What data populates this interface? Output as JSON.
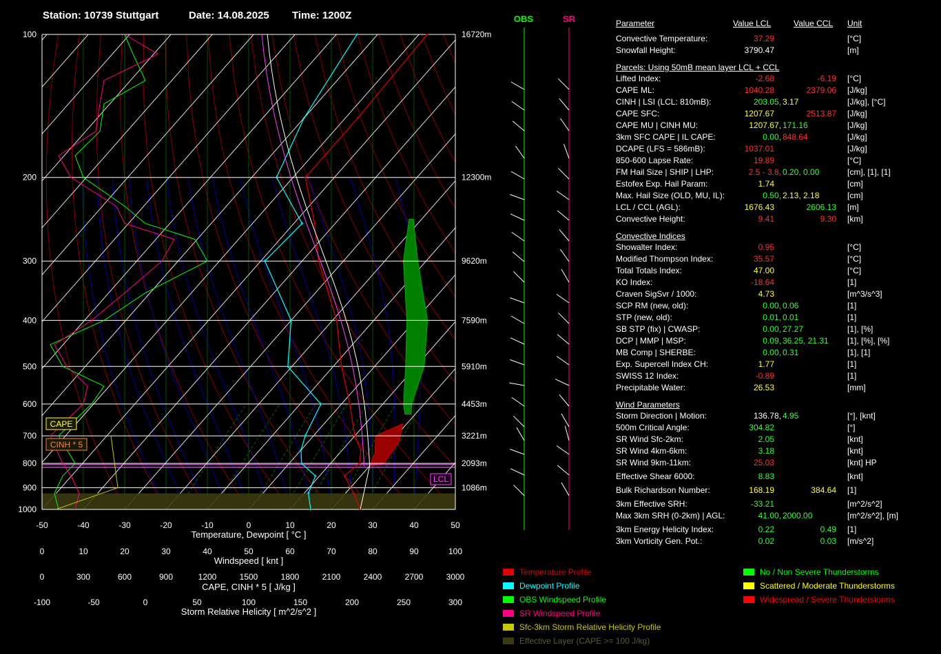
{
  "header": {
    "station": "Station: 10739 Stuttgart",
    "date": "Date: 14.08.2025",
    "time": "Time: 1200Z"
  },
  "skewt": {
    "pressure_ticks": [
      "100",
      "200",
      "300",
      "400",
      "500",
      "600",
      "700",
      "800",
      "900",
      "1000"
    ],
    "height_labels": [
      "16720m",
      "12300m",
      "9620m",
      "7590m",
      "5910m",
      "4453m",
      "3221m",
      "2093m",
      "1086m"
    ],
    "temp_ticks": [
      "-50",
      "-40",
      "-30",
      "-20",
      "-10",
      "0",
      "10",
      "20",
      "30",
      "40",
      "50"
    ],
    "temp_axis_label": "Temperature, Dewpoint [ °C ]",
    "wind_ticks": [
      "0",
      "10",
      "20",
      "30",
      "40",
      "50",
      "60",
      "70",
      "80",
      "90",
      "100"
    ],
    "wind_axis_label": "Windspeed [ knt ]",
    "cape_ticks": [
      "0",
      "300",
      "600",
      "900",
      "1200",
      "1500",
      "1800",
      "2100",
      "2400",
      "2700",
      "3000"
    ],
    "cape_axis_label": "CAPE, CINH * 5 [ J/kg ]",
    "srh_ticks": [
      "-100",
      "-50",
      "0",
      "50",
      "100",
      "150",
      "200",
      "250",
      "300"
    ],
    "srh_axis_label": "Storm Relative Helicity [ m^2/s^2 ]",
    "cape_box": "CAPE",
    "cinh_box": "CINH * 5",
    "lcl_box": "LCL"
  },
  "wind_columns": {
    "obs": "OBS",
    "sr": "SR"
  },
  "chart_data": {
    "type": "line",
    "title": "Station: 10739 Stuttgart Date: 14.08.2025 Time: 1200Z",
    "xlabel": "Temperature, Dewpoint [ °C ]",
    "ylabel": "",
    "xlim": [
      -50,
      50
    ],
    "ylim": [
      1000,
      100
    ],
    "y_scale": "log",
    "series": [
      {
        "name": "Temperature Profile",
        "color": "#e00000",
        "points": [
          [
            1000,
            27
          ],
          [
            925,
            22
          ],
          [
            850,
            16
          ],
          [
            800,
            17
          ],
          [
            750,
            14.5
          ],
          [
            700,
            10
          ],
          [
            600,
            2
          ],
          [
            500,
            -8
          ],
          [
            400,
            -19
          ],
          [
            300,
            -36
          ],
          [
            250,
            -45
          ],
          [
            200,
            -57
          ],
          [
            150,
            -57
          ],
          [
            100,
            -58
          ]
        ]
      },
      {
        "name": "Dewpoint Profile",
        "color": "#00ffff",
        "points": [
          [
            1000,
            15
          ],
          [
            925,
            11
          ],
          [
            850,
            9
          ],
          [
            800,
            3
          ],
          [
            750,
            0
          ],
          [
            700,
            -2
          ],
          [
            600,
            -5
          ],
          [
            500,
            -21
          ],
          [
            400,
            -30
          ],
          [
            300,
            -49
          ],
          [
            250,
            -48
          ],
          [
            200,
            -64
          ],
          [
            150,
            -70
          ],
          [
            100,
            -75
          ]
        ]
      }
    ]
  },
  "table": {
    "headers": {
      "param": "Parameter",
      "lcl": "Value LCL",
      "ccl": "Value CCL",
      "unit": "Unit"
    },
    "rows": [
      {
        "l": "Convective Temperature:",
        "v1": "37.29",
        "c1": "#ff3030",
        "v2": "",
        "c2": "",
        "u": "[°C]"
      },
      {
        "l": "Snowfall Height:",
        "v1": "3790.47",
        "c1": "#ffffff",
        "v2": "",
        "c2": "",
        "u": "[m]"
      },
      {
        "sec": "Parcels: Using 50mB mean layer LCL + CCL"
      },
      {
        "l": "Lifted Index:",
        "v1": "-2.68",
        "c1": "#ff3030",
        "v2": "-6.19",
        "c2": "#ff3030",
        "u": "[°C]"
      },
      {
        "l": "CAPE ML:",
        "v1": "1040.28",
        "c1": "#ff3030",
        "v2": "2379.06",
        "c2": "#ff3030",
        "u": "[J/kg]"
      },
      {
        "l": "CINH | LSI (LCL: 810mB):",
        "v1": "203.05,",
        "c1": "#33ff33",
        "v2": "3.17",
        "c2": "#ffff33",
        "u": "[J/kg], [°C]",
        "v2left": true
      },
      {
        "l": "CAPE SFC:",
        "v1": "1207.67",
        "c1": "#ffff33",
        "v2": "2513.87",
        "c2": "#ff3030",
        "u": "[J/kg]"
      },
      {
        "l": "CAPE MU | CINH MU:",
        "v1": "1207.67,",
        "c1": "#ffff33",
        "v2": "171.16",
        "c2": "#33ff33",
        "u": "[J/kg]",
        "v2left": true
      },
      {
        "l": "3km SFC CAPE | IL CAPE:",
        "v1": "0.00,",
        "c1": "#33ff33",
        "v2": "848.64",
        "c2": "#ff3030",
        "u": "[J/kg]",
        "v2left": true
      },
      {
        "l": "DCAPE (LFS = 586mB):",
        "v1": "1037.01",
        "c1": "#ff3030",
        "v2": "",
        "c2": "",
        "u": "[J/kg]"
      },
      {
        "l": "850-600 Lapse Rate:",
        "v1": "19.89",
        "c1": "#ff3030",
        "v2": "",
        "c2": "",
        "u": "[°C]"
      },
      {
        "l": "FM Hail Size | SHIP | LHP:",
        "v1": "2.5 - 3.8,",
        "c1": "#ff3030",
        "v2": "0.20,  0.00",
        "c2": "#33ff33",
        "u": "[cm], [1], [1]",
        "v2left": true
      },
      {
        "l": "Estofex Exp. Hail Param:",
        "v1": "1.74",
        "c1": "#ffff33",
        "v2": "",
        "c2": "",
        "u": "[cm]"
      },
      {
        "l": "Max. Hail Size (OLD, MU, IL):",
        "v1": "0.50,",
        "c1": "#33ff33",
        "v2": "2.13,  2.18",
        "c2": "#ffff33",
        "u": "[cm]",
        "v2left": true
      },
      {
        "l": "LCL / CCL (AGL):",
        "v1": "1676.43",
        "c1": "#ffff33",
        "v2": "2606.13",
        "c2": "#33ff33",
        "u": "[m]"
      },
      {
        "l": "Convective Height:",
        "v1": "9.41",
        "c1": "#ff3030",
        "v2": "9.30",
        "c2": "#ff3030",
        "u": "[km]"
      },
      {
        "sec": "Convective Indices"
      },
      {
        "l": "Showalter Index:",
        "v1": "0.95",
        "c1": "#ff3030",
        "v2": "",
        "c2": "",
        "u": "[°C]"
      },
      {
        "l": "Modified Thompson Index:",
        "v1": "35.57",
        "c1": "#ff3030",
        "v2": "",
        "c2": "",
        "u": "[°C]"
      },
      {
        "l": "Total Totals Index:",
        "v1": "47.00",
        "c1": "#ffff33",
        "v2": "",
        "c2": "",
        "u": "[°C]"
      },
      {
        "l": "KO Index:",
        "v1": "-18.64",
        "c1": "#ff3030",
        "v2": "",
        "c2": "",
        "u": "[1]"
      },
      {
        "l": "Craven SigSvr / 1000:",
        "v1": "4.73",
        "c1": "#ffff33",
        "v2": "",
        "c2": "",
        "u": "[m^3/s^3]"
      },
      {
        "l": "SCP RM (new, old):",
        "v1": "0.00,",
        "c1": "#33ff33",
        "v2": "0.06",
        "c2": "#33ff33",
        "u": "[1]",
        "v2left": true
      },
      {
        "l": "STP (new, old):",
        "v1": "0.01,",
        "c1": "#33ff33",
        "v2": "0.01",
        "c2": "#33ff33",
        "u": "[1]",
        "v2left": true
      },
      {
        "l": "SB STP (fix) | CWASP:",
        "v1": "0.00,",
        "c1": "#33ff33",
        "v2": "27.27",
        "c2": "#33ff33",
        "u": "[1], [%]",
        "v2left": true
      },
      {
        "l": "DCP | MMP | MSP:",
        "v1": "0.09,",
        "c1": "#33ff33",
        "v2": "36.25,  21.31",
        "c2": "#33ff33",
        "u": "[1], [%], [%]",
        "v2left": true
      },
      {
        "l": "MB Comp | SHERBE:",
        "v1": "0.00,",
        "c1": "#33ff33",
        "v2": "0.31",
        "c2": "#33ff33",
        "u": "[1], [1]",
        "v2left": true
      },
      {
        "l": "Exp. Supercell Index CH:",
        "v1": "1.77",
        "c1": "#ffff33",
        "v2": "",
        "c2": "",
        "u": "[1]"
      },
      {
        "l": "SWISS 12 Index:",
        "v1": "-0.89",
        "c1": "#ff3030",
        "v2": "",
        "c2": "",
        "u": "[1]"
      },
      {
        "l": "Precipitable Water:",
        "v1": "26.53",
        "c1": "#ffff33",
        "v2": "",
        "c2": "",
        "u": "[mm]"
      },
      {
        "sec": "Wind Parameters"
      },
      {
        "l": "Storm Direction | Motion:",
        "v1": "136.78,",
        "c1": "#ffffff",
        "v2": "4.95",
        "c2": "#33ff33",
        "u": "[°], [knt]",
        "v2left": true
      },
      {
        "l": "500m Critical Angle:",
        "v1": "304.82",
        "c1": "#33ff33",
        "v2": "",
        "c2": "",
        "u": "[°]"
      },
      {
        "l": "SR Wind Sfc-2km:",
        "v1": "2.05",
        "c1": "#33ff33",
        "v2": "",
        "c2": "",
        "u": "[knt]"
      },
      {
        "l": "SR Wind 4km-6km:",
        "v1": "3.18",
        "c1": "#33ff33",
        "v2": "",
        "c2": "",
        "u": "[knt]"
      },
      {
        "l": "SR Wind 9km-11km:",
        "v1": "25.03",
        "c1": "#ff3030",
        "v2": "",
        "c2": "",
        "u": "[knt] HP"
      },
      {
        "l": "Effective Shear 6000:",
        "v1": "8.83",
        "c1": "#33ff33",
        "v2": "",
        "c2": "",
        "u": "[knt]",
        "gap": true
      },
      {
        "l": "Bulk Richardson Number:",
        "v1": "168.19",
        "c1": "#ffff33",
        "v2": "384.64",
        "c2": "#ffff33",
        "u": "[1]",
        "gap": true
      },
      {
        "l": "3km Effective SRH:",
        "v1": "-33.21",
        "c1": "#33ff33",
        "v2": "",
        "c2": "",
        "u": "[m^2/s^2]",
        "gap": true
      },
      {
        "l": "Max 3km SRH (0-2km) | AGL:",
        "v1": "41.00,",
        "c1": "#33ff33",
        "v2": "2000.00",
        "c2": "#33ff33",
        "u": "[m^2/s^2], [m]",
        "v2left": true
      },
      {
        "l": "3km Energy Helicity Index:",
        "v1": "0.22",
        "c1": "#33ff33",
        "v2": "0.49",
        "c2": "#33ff33",
        "u": "[1]",
        "gap": true
      },
      {
        "l": "3km Vorticity Gen. Pot.:",
        "v1": "0.02",
        "c1": "#33ff33",
        "v2": "0.03",
        "c2": "#33ff33",
        "u": "[m/s^2]"
      }
    ]
  },
  "legend_left": [
    {
      "label": "Temperature Profile",
      "color": "#e00000"
    },
    {
      "label": "Dewpoint Profile",
      "color": "#00ffff"
    },
    {
      "label": "OBS Windspeed Profile",
      "color": "#00ff00"
    },
    {
      "label": "SR Windspeed Profile",
      "color": "#ff0080"
    },
    {
      "label": "Sfc-3km Storm Relative Helicity Profile",
      "color": "#c8c800"
    },
    {
      "label": "Effective Layer (CAPE >= 100 J/kg)",
      "color": "#3a3a10"
    }
  ],
  "legend_right": [
    {
      "label": "No / Non Severe Thunderstorms",
      "color": "#00ff00"
    },
    {
      "label": "Scattered / Moderate Thunderstorms",
      "color": "#ffff00"
    },
    {
      "label": "Widespread / Severe Thunderstorms",
      "color": "#ff0000"
    }
  ]
}
